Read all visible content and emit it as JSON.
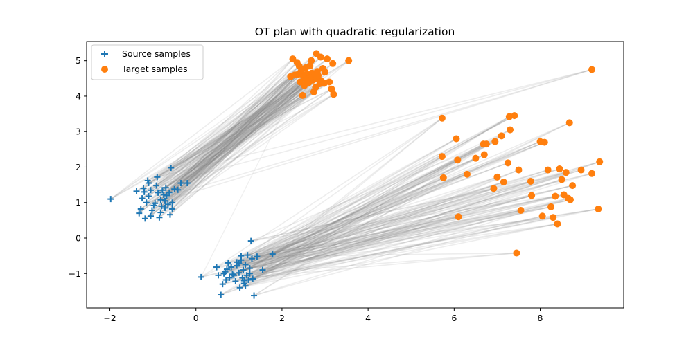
{
  "chart_data": {
    "type": "scatter",
    "title": "OT plan with quadratic regularization",
    "xlabel": "",
    "ylabel": "",
    "xlim": [
      -2.54,
      9.94
    ],
    "ylim": [
      -1.97,
      5.54
    ],
    "xticks": [
      -2,
      0,
      2,
      4,
      6,
      8
    ],
    "yticks": [
      -1,
      0,
      1,
      2,
      3,
      4,
      5
    ],
    "grid": false,
    "legend_position": "upper-left",
    "colors": {
      "source": "#1f77b4",
      "target": "#ff7f0e",
      "plan": "#808080"
    },
    "series": [
      {
        "name": "Source samples",
        "marker": "plus",
        "x": [
          -1.98,
          -1.38,
          -1.32,
          -1.22,
          -1.18,
          -1.12,
          -1.1,
          -1.05,
          -1.02,
          -0.95,
          -0.9,
          -0.85,
          -0.82,
          -0.78,
          -0.72,
          -0.7,
          -0.65,
          -0.6,
          -0.55,
          -0.5,
          -0.42,
          -0.58,
          -0.35,
          -0.2,
          -0.88,
          -0.75,
          -1.15,
          -1.25,
          -0.98,
          -0.68,
          -0.82,
          -1.05,
          -0.62,
          -1.28,
          -0.92,
          -0.72,
          -1.2,
          -0.55,
          -0.8,
          -1.1,
          0.12,
          0.48,
          0.52,
          0.58,
          0.62,
          0.65,
          0.7,
          0.72,
          0.78,
          0.82,
          0.88,
          0.92,
          0.95,
          1.0,
          1.02,
          1.05,
          1.08,
          1.1,
          1.12,
          1.15,
          1.18,
          1.2,
          1.22,
          1.25,
          1.28,
          1.32,
          1.35,
          1.42,
          1.55,
          1.78,
          0.68,
          0.75,
          0.85,
          1.05,
          1.15,
          1.25,
          0.95,
          1.12,
          1.3,
          1.0
        ],
        "y": [
          1.1,
          1.32,
          0.7,
          1.4,
          0.55,
          1.62,
          1.18,
          1.35,
          0.78,
          0.98,
          1.72,
          0.58,
          1.08,
          1.35,
          0.85,
          1.42,
          0.95,
          0.66,
          0.82,
          1.38,
          1.36,
          1.98,
          1.55,
          1.55,
          1.28,
          1.22,
          1.0,
          1.12,
          0.92,
          1.2,
          0.72,
          0.62,
          1.28,
          0.82,
          1.48,
          1.05,
          1.3,
          1.0,
          0.9,
          1.55,
          -1.1,
          -0.82,
          -1.05,
          -1.6,
          -1.3,
          -1.0,
          -1.18,
          -0.88,
          -1.12,
          -0.82,
          -1.05,
          -1.22,
          -0.68,
          -0.98,
          -1.4,
          -0.62,
          -1.12,
          -0.9,
          -1.28,
          -0.75,
          -1.05,
          -0.48,
          -1.18,
          -0.85,
          -0.08,
          -1.15,
          -1.62,
          -0.52,
          -0.9,
          -0.45,
          -0.95,
          -0.7,
          -1.02,
          -0.5,
          -1.35,
          -1.0,
          -0.78,
          -1.2,
          -0.58,
          -0.72
        ],
        "color": "#1f77b4"
      },
      {
        "name": "Target samples",
        "marker": "circle",
        "x": [
          2.25,
          2.3,
          2.35,
          2.4,
          2.42,
          2.45,
          2.5,
          2.52,
          2.55,
          2.58,
          2.6,
          2.62,
          2.65,
          2.68,
          2.7,
          2.72,
          2.75,
          2.78,
          2.8,
          2.82,
          2.85,
          2.88,
          2.9,
          2.95,
          3.0,
          3.05,
          3.1,
          3.15,
          3.2,
          3.55,
          2.2,
          2.48,
          2.66,
          2.92,
          3.18,
          2.74,
          2.56,
          2.98,
          2.84,
          2.38,
          5.72,
          5.72,
          5.75,
          6.05,
          6.08,
          6.1,
          6.3,
          6.5,
          6.68,
          6.7,
          6.92,
          6.95,
          7.0,
          7.1,
          7.15,
          7.25,
          7.28,
          7.3,
          7.4,
          7.5,
          7.55,
          7.78,
          7.8,
          8.0,
          8.05,
          8.1,
          8.18,
          8.25,
          8.3,
          8.35,
          8.4,
          8.45,
          8.5,
          8.55,
          8.6,
          8.65,
          8.7,
          8.75,
          8.95,
          9.2,
          9.35,
          9.38,
          7.45,
          9.2,
          8.68,
          6.75
        ],
        "y": [
          5.05,
          4.6,
          4.95,
          4.85,
          4.4,
          4.72,
          4.55,
          4.3,
          4.8,
          4.62,
          4.5,
          4.38,
          4.85,
          5.0,
          4.65,
          4.45,
          4.55,
          4.25,
          5.2,
          4.7,
          4.48,
          4.35,
          5.1,
          4.78,
          4.68,
          5.05,
          4.4,
          4.2,
          4.05,
          5.0,
          4.55,
          4.02,
          4.52,
          4.42,
          4.92,
          4.12,
          4.48,
          4.36,
          4.58,
          4.62,
          3.38,
          2.3,
          1.7,
          2.8,
          2.2,
          0.6,
          1.8,
          2.25,
          2.65,
          2.35,
          1.4,
          2.72,
          1.72,
          2.88,
          1.58,
          2.12,
          3.42,
          3.05,
          3.45,
          1.92,
          0.78,
          1.6,
          1.2,
          2.72,
          0.62,
          2.7,
          1.92,
          0.88,
          0.58,
          1.18,
          0.4,
          1.95,
          1.65,
          1.22,
          1.85,
          1.12,
          1.08,
          1.48,
          1.92,
          1.82,
          0.82,
          2.15,
          -0.42,
          4.75,
          3.25,
          2.65
        ],
        "color": "#ff7f0e"
      }
    ],
    "plan_lines_description_count": 80
  }
}
